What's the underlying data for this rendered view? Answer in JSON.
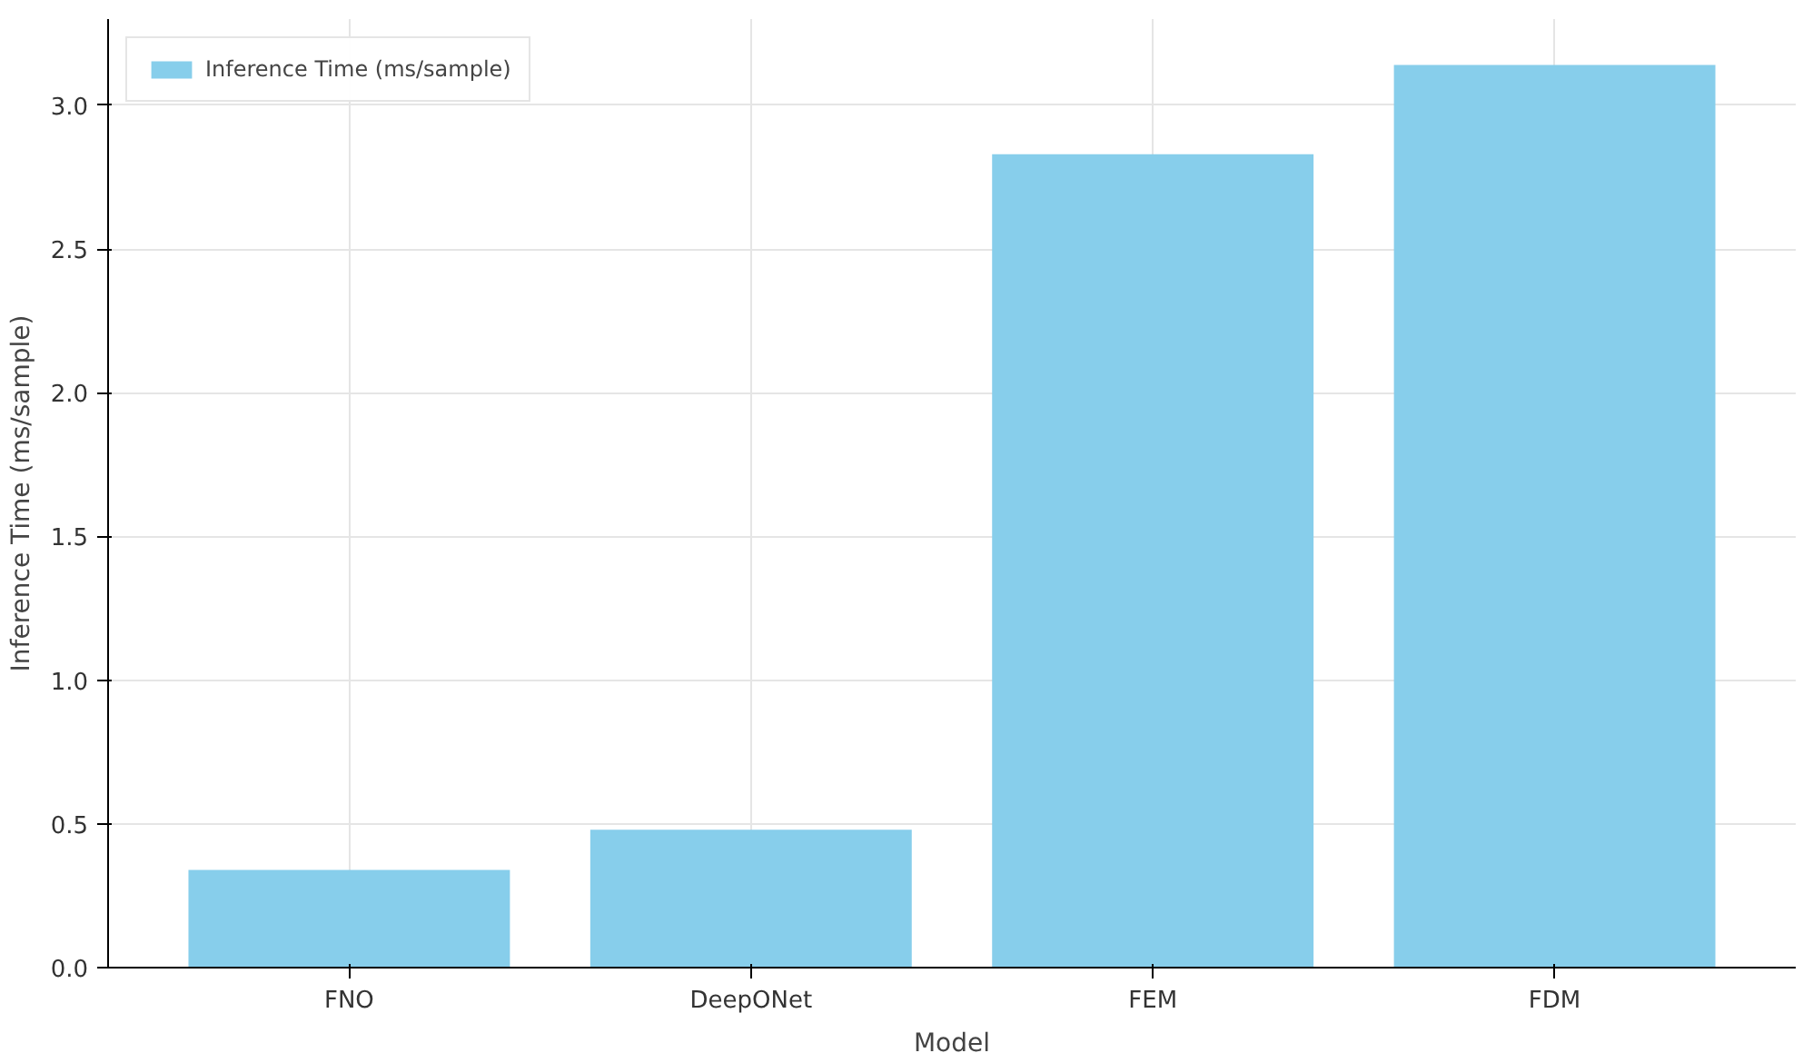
{
  "chart_data": {
    "type": "bar",
    "xlabel": "Model",
    "ylabel": "Inference Time (ms/sample)",
    "categories": [
      "FNO",
      "DeepONet",
      "FEM",
      "FDM"
    ],
    "series": [
      {
        "name": "Inference Time (ms/sample)",
        "color": "#87ceeb",
        "values": [
          0.34,
          0.48,
          2.83,
          3.14
        ]
      }
    ],
    "ylim": [
      0,
      3.3
    ],
    "yticks": [
      {
        "value": 0,
        "label": "0.0"
      },
      {
        "value": 0.5,
        "label": "0.5"
      },
      {
        "value": 1,
        "label": "1.0"
      },
      {
        "value": 1.5,
        "label": "1.5"
      },
      {
        "value": 2,
        "label": "2.0"
      },
      {
        "value": 2.5,
        "label": "2.5"
      },
      {
        "value": 3,
        "label": "3.0"
      }
    ],
    "grid": true,
    "legend": "top left"
  }
}
